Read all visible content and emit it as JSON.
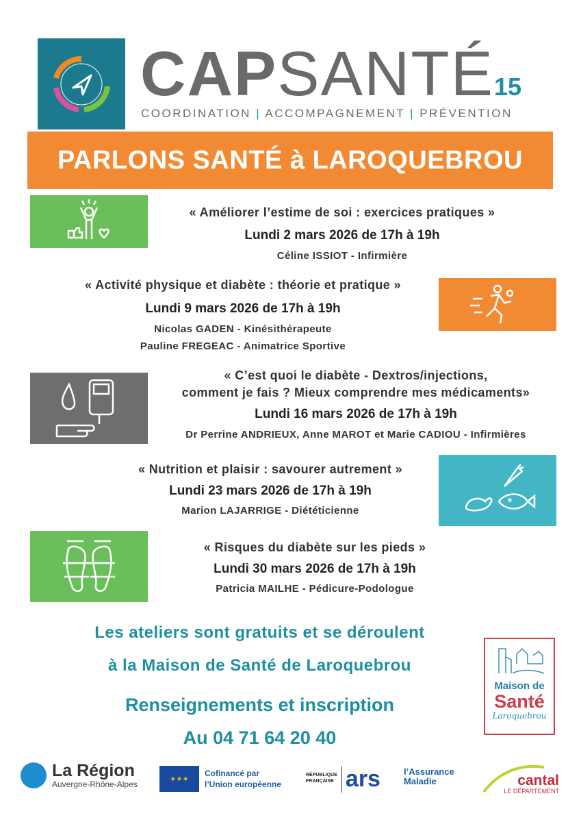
{
  "header": {
    "brand_bold": "CAP",
    "brand_light": "SANTÉ",
    "brand_number": "15",
    "tagline": [
      "COORDINATION",
      "ACCOMPAGNEMENT",
      "PRÉVENTION"
    ],
    "tagline_sep": "|"
  },
  "banner": {
    "title": "PARLONS SANTÉ à LAROQUEBROU"
  },
  "sessions": [
    {
      "title": "« Améliorer l’estime de soi : exercices pratiques »",
      "date": "Lundi 2 mars 2026 de 17h à 19h",
      "speakers": [
        "Céline ISSIOT - Infirmière"
      ],
      "icon": "self-esteem-icon",
      "color": "#6abf5a"
    },
    {
      "title": "« Activité physique et diabète : théorie et pratique »",
      "date": "Lundi 9 mars 2026 de 17h à 19h",
      "speakers": [
        "Nicolas GADEN - Kinésithérapeute",
        "Pauline FREGEAC - Animatrice Sportive"
      ],
      "icon": "runners-icon",
      "color": "#f28a34"
    },
    {
      "title": "« C’est quoi le diabète - Dextros/injections,",
      "title2": "comment je fais ? Mieux comprendre mes médicaments»",
      "date": "Lundi 16 mars 2026 de 17h à 19h",
      "speakers": [
        "Dr Perrine ANDRIEUX, Anne MAROT et Marie CADIOU - Infirmières"
      ],
      "icon": "glucose-meter-icon",
      "color": "#6e6e70"
    },
    {
      "title": "« Nutrition et plaisir : savourer autrement »",
      "date": "Lundi 23 mars 2026 de 17h à 19h",
      "speakers": [
        "Marion LAJARRIGE - Diététicienne"
      ],
      "icon": "food-icon",
      "color": "#43b6c6"
    },
    {
      "title": "« Risques du diabète sur les pieds »",
      "date": "Lundi 30 mars 2026 de 17h à 19h",
      "speakers": [
        "Patricia MAILHE - Pédicure-Podologue"
      ],
      "icon": "feet-icon",
      "color": "#6abf5a"
    }
  ],
  "footer": {
    "line1": "Les ateliers sont gratuits et se déroulent",
    "line2": "à la Maison de Santé de Laroquebrou",
    "line3": "Renseignements et inscription",
    "phone": "Au 04 71 64 20 40"
  },
  "maison_sante": {
    "line1": "Maison de",
    "line2": "Santé",
    "line3": "Laroquebrou"
  },
  "partners": {
    "region": {
      "name": "La Région",
      "sub": "Auvergne-Rhône-Alpes"
    },
    "eu": {
      "line1": "Cofinancé par",
      "line2": "l’Union européenne"
    },
    "republique": {
      "line1": "RÉPUBLIQUE",
      "line2": "FRANÇAISE"
    },
    "ars": {
      "name": "ars"
    },
    "assurance": {
      "line1": "l’Assurance",
      "line2": "Maladie"
    },
    "cantal": {
      "name": "cantal",
      "sub": "LE DÉPARTEMENT"
    }
  },
  "colors": {
    "orange": "#f28a34",
    "green": "#6abf5a",
    "gray": "#6e6e70",
    "teal": "#43b6c6",
    "text_teal": "#1d8fa0",
    "red": "#d23b4a"
  }
}
